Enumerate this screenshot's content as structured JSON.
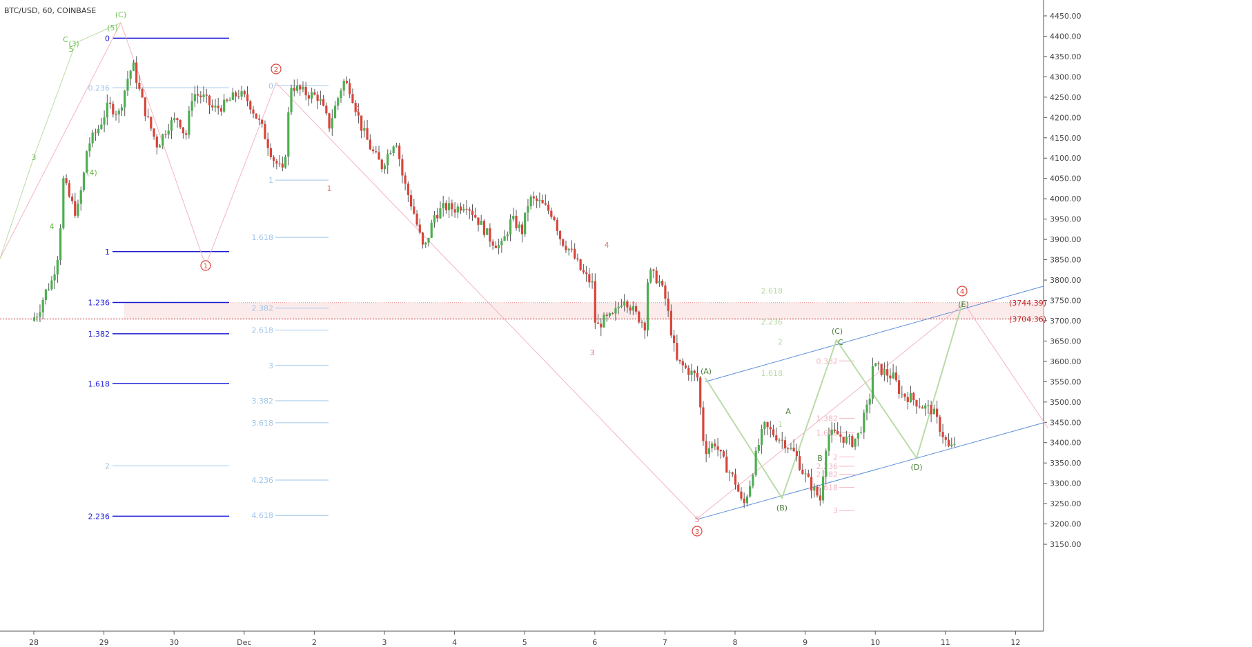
{
  "title": "BTC/USD, 60, COINBASE",
  "colors": {
    "up": "#4caf50",
    "down": "#d9443a",
    "wick": "#555555",
    "fib_dark": "#1a1ad6",
    "fib_light": "#9ec5ea",
    "channel": "#5b8fd9",
    "pink": "#f3b4c0",
    "green_wave": "#b9dba8",
    "red_label": "#d9443a",
    "green_label": "#4a7f3a"
  },
  "chart_data": {
    "type": "candlestick",
    "symbol": "BTC/USD",
    "interval": "60",
    "exchange": "COINBASE",
    "x_ticks": [
      "28",
      "29",
      "30",
      "Dec",
      "2",
      "3",
      "4",
      "5",
      "6",
      "7",
      "8",
      "9",
      "10",
      "11",
      "12"
    ],
    "y_ticks": [
      "4450.00",
      "4400.00",
      "4350.00",
      "4300.00",
      "4250.00",
      "4200.00",
      "4150.00",
      "4100.00",
      "4050.00",
      "4000.00",
      "3950.00",
      "3900.00",
      "3850.00",
      "3800.00",
      "3750.00",
      "3700.00",
      "3650.00",
      "3600.00",
      "3550.00",
      "3500.00",
      "3450.00",
      "3400.00",
      "3350.00",
      "3300.00",
      "3250.00",
      "3200.00",
      "3150.00"
    ],
    "ylim": [
      3150,
      4465
    ],
    "xlim": [
      27.5,
      12.45
    ],
    "price_labels": [
      "(3744.39)",
      "(3704.36)"
    ],
    "price_levels": [
      3744.39,
      3704.36
    ],
    "series_path": [
      [
        0,
        3700
      ],
      [
        0.1,
        3720
      ],
      [
        0.2,
        3770
      ],
      [
        0.3,
        3800
      ],
      [
        0.4,
        3880
      ],
      [
        0.45,
        4050
      ],
      [
        0.55,
        4000
      ],
      [
        0.65,
        3960
      ],
      [
        0.75,
        4060
      ],
      [
        0.8,
        4130
      ],
      [
        0.95,
        4170
      ],
      [
        1.1,
        4230
      ],
      [
        1.25,
        4210
      ],
      [
        1.38,
        4300
      ],
      [
        1.45,
        4330
      ],
      [
        1.55,
        4260
      ],
      [
        1.65,
        4200
      ],
      [
        1.8,
        4130
      ],
      [
        1.95,
        4180
      ],
      [
        2.1,
        4200
      ],
      [
        2.2,
        4150
      ],
      [
        2.3,
        4260
      ],
      [
        2.45,
        4250
      ],
      [
        2.6,
        4220
      ],
      [
        2.75,
        4230
      ],
      [
        2.95,
        4260
      ],
      [
        3.1,
        4240
      ],
      [
        3.3,
        4170
      ],
      [
        3.45,
        4100
      ],
      [
        3.6,
        4060
      ],
      [
        3.7,
        4280
      ],
      [
        3.9,
        4260
      ],
      [
        4.1,
        4250
      ],
      [
        4.25,
        4180
      ],
      [
        4.45,
        4290
      ],
      [
        4.55,
        4270
      ],
      [
        4.7,
        4180
      ],
      [
        4.85,
        4120
      ],
      [
        5.0,
        4080
      ],
      [
        5.2,
        4150
      ],
      [
        5.3,
        4050
      ],
      [
        5.45,
        3970
      ],
      [
        5.6,
        3870
      ],
      [
        5.75,
        3960
      ],
      [
        5.9,
        3980
      ],
      [
        6.05,
        3975
      ],
      [
        6.2,
        3990
      ],
      [
        6.4,
        3940
      ],
      [
        6.55,
        3900
      ],
      [
        6.7,
        3880
      ],
      [
        6.85,
        3950
      ],
      [
        7.0,
        3920
      ],
      [
        7.1,
        4000
      ],
      [
        7.25,
        3990
      ],
      [
        7.45,
        3960
      ],
      [
        7.55,
        3900
      ],
      [
        7.7,
        3870
      ],
      [
        7.85,
        3820
      ],
      [
        8.0,
        3790
      ],
      [
        8.05,
        3680
      ],
      [
        8.15,
        3700
      ],
      [
        8.3,
        3710
      ],
      [
        8.45,
        3760
      ],
      [
        8.6,
        3720
      ],
      [
        8.75,
        3690
      ],
      [
        8.8,
        3820
      ],
      [
        8.95,
        3800
      ],
      [
        9.05,
        3750
      ],
      [
        9.2,
        3600
      ],
      [
        9.35,
        3580
      ],
      [
        9.5,
        3560
      ],
      [
        9.6,
        3380
      ],
      [
        9.75,
        3400
      ],
      [
        9.85,
        3360
      ],
      [
        9.95,
        3330
      ],
      [
        10.05,
        3300
      ],
      [
        10.15,
        3240
      ],
      [
        10.25,
        3300
      ],
      [
        10.35,
        3380
      ],
      [
        10.45,
        3440
      ],
      [
        10.6,
        3420
      ],
      [
        10.75,
        3400
      ],
      [
        10.9,
        3370
      ],
      [
        11.0,
        3330
      ],
      [
        11.1,
        3300
      ],
      [
        11.25,
        3260
      ],
      [
        11.35,
        3420
      ],
      [
        11.5,
        3420
      ],
      [
        11.6,
        3410
      ],
      [
        11.7,
        3400
      ],
      [
        11.8,
        3420
      ],
      [
        11.95,
        3500
      ],
      [
        12.0,
        3590
      ],
      [
        12.1,
        3580
      ],
      [
        12.2,
        3570
      ],
      [
        12.3,
        3560
      ],
      [
        12.4,
        3520
      ],
      [
        12.55,
        3510
      ],
      [
        12.7,
        3490
      ],
      [
        12.85,
        3480
      ],
      [
        13.0,
        3420
      ],
      [
        13.1,
        3380
      ],
      [
        13.2,
        3410
      ]
    ]
  },
  "annotations": {
    "fib_left": [
      {
        "label": "0",
        "value": 4395,
        "color": "dark"
      },
      {
        "label": "0.236",
        "value": 4273,
        "color": "light"
      },
      {
        "label": "1",
        "value": 3870,
        "color": "dark"
      },
      {
        "label": "1.236",
        "value": 3745,
        "color": "dark"
      },
      {
        "label": "1.382",
        "value": 3668,
        "color": "dark"
      },
      {
        "label": "1.618",
        "value": 3545,
        "color": "dark"
      },
      {
        "label": "2",
        "value": 3343,
        "color": "light"
      },
      {
        "label": "2.236",
        "value": 3219,
        "color": "dark"
      }
    ],
    "fib_mid": [
      {
        "label": "0",
        "value": 4278
      },
      {
        "label": "1",
        "value": 4046
      },
      {
        "label": "1.618",
        "value": 3905
      },
      {
        "label": "2.382",
        "value": 3731
      },
      {
        "label": "2.618",
        "value": 3677
      },
      {
        "label": "3",
        "value": 3590
      },
      {
        "label": "3.382",
        "value": 3503
      },
      {
        "label": "3.618",
        "value": 3449
      },
      {
        "label": "4.236",
        "value": 3308
      },
      {
        "label": "4.618",
        "value": 3221
      }
    ],
    "fib_right_green": [
      {
        "label": "2.618",
        "value": 3774
      },
      {
        "label": "2.236",
        "value": 3697
      },
      {
        "label": "2",
        "value": 3648
      },
      {
        "label": "1.618",
        "value": 3571
      },
      {
        "label": "1",
        "value": 3445
      }
    ],
    "fib_right_pink": [
      {
        "label": "0.382",
        "value": 3601
      },
      {
        "label": "1.382",
        "value": 3460
      },
      {
        "label": "1.618",
        "value": 3424
      },
      {
        "label": "2",
        "value": 3365
      },
      {
        "label": "2.236",
        "value": 3342
      },
      {
        "label": "2.382",
        "value": 3322
      },
      {
        "label": "2.618",
        "value": 3290
      },
      {
        "label": "3",
        "value": 3233
      }
    ],
    "wave_labels_green": [
      "(C)",
      "(5)",
      "C",
      "(3)",
      "5",
      "3",
      "(4)",
      "4",
      "(A)",
      "(B)",
      "(C)",
      "(D)",
      "(E)",
      "A",
      "B",
      "C"
    ],
    "wave_labels_red": [
      "1",
      "2",
      "4",
      "3",
      "5",
      "1",
      "2",
      "3",
      "4"
    ],
    "circled_labels": [
      "1",
      "2",
      "3",
      "4"
    ]
  }
}
